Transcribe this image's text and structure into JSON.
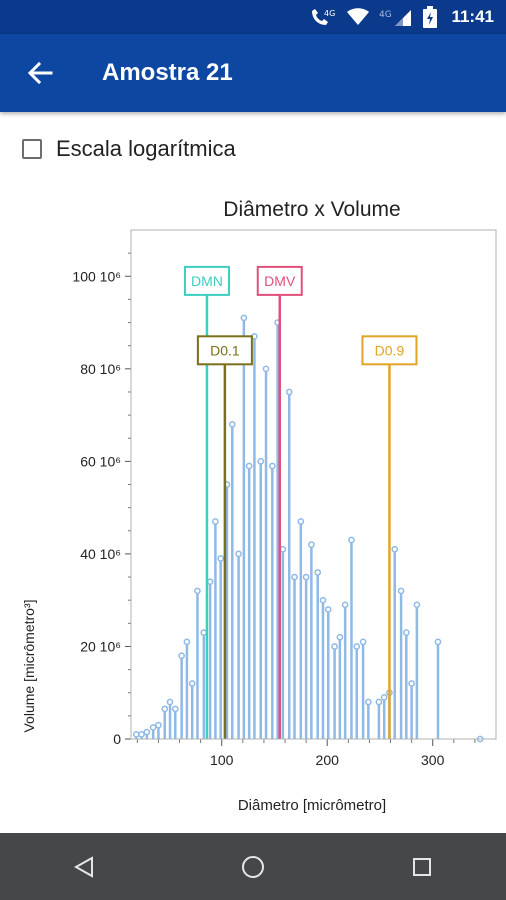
{
  "status_bar": {
    "time": "11:41",
    "network_labels": [
      "4G",
      "4G"
    ],
    "icons": [
      "call-4g-icon",
      "wifi-icon",
      "cell-signal-icon",
      "battery-charging-icon"
    ]
  },
  "app_bar": {
    "title": "Amostra 21",
    "back_icon": "arrow-left-icon"
  },
  "options": {
    "log_scale_label": "Escala logarítmica",
    "log_scale_checked": false
  },
  "chart_data": {
    "type": "bar",
    "title": "Diâmetro x Volume",
    "xlabel": "Diâmetro [micrômetro]",
    "ylabel": "Volume [micrômetro³]",
    "xlim": [
      14,
      360
    ],
    "ylim": [
      0,
      110
    ],
    "x_ticks": [
      {
        "value": 100,
        "label": "100"
      },
      {
        "value": 200,
        "label": "200"
      },
      {
        "value": 300,
        "label": "300"
      }
    ],
    "y_ticks": [
      {
        "value": 0,
        "label": "0"
      },
      {
        "value": 20,
        "label": "20 10⁶"
      },
      {
        "value": 40,
        "label": "40 10⁶"
      },
      {
        "value": 60,
        "label": "60 10⁶"
      },
      {
        "value": 80,
        "label": "80 10⁶"
      },
      {
        "value": 100,
        "label": "100 10⁶"
      }
    ],
    "series_color": "#8fb9e6",
    "x": [
      19,
      24,
      29,
      35,
      40,
      46,
      51,
      56,
      62,
      67,
      72,
      77,
      83,
      89,
      94,
      99,
      105,
      110,
      116,
      121,
      126,
      131,
      137,
      142,
      148,
      153,
      158,
      164,
      169,
      175,
      180,
      185,
      191,
      196,
      201,
      207,
      212,
      217,
      223,
      228,
      234,
      239,
      249,
      254,
      259,
      264,
      270,
      275,
      280,
      285,
      305,
      345
    ],
    "y": [
      1,
      1,
      1.5,
      2.5,
      3,
      6.5,
      8,
      6.5,
      18,
      21,
      12,
      32,
      23,
      34,
      47,
      39,
      55,
      68,
      40,
      91,
      59,
      87,
      60,
      80,
      59,
      90,
      41,
      75,
      35,
      47,
      35,
      42,
      36,
      30,
      28,
      20,
      22,
      29,
      43,
      20,
      21,
      8,
      8,
      9,
      10,
      41,
      32,
      23,
      12,
      29,
      21,
      0
    ],
    "markers": [
      {
        "label": "DMN",
        "x": 86,
        "color": "#3ccfc0",
        "label_y": 99
      },
      {
        "label": "DMV",
        "x": 155,
        "color": "#e0507a",
        "label_y": 99
      },
      {
        "label": "D0.1",
        "x": 103,
        "color": "#7a6f1a",
        "label_y": 84
      },
      {
        "label": "D0.9",
        "x": 259,
        "color": "#e0a428",
        "label_y": 84
      }
    ]
  },
  "nav_bar": {
    "icons": [
      "back-triangle-icon",
      "home-circle-icon",
      "recents-square-icon"
    ]
  }
}
